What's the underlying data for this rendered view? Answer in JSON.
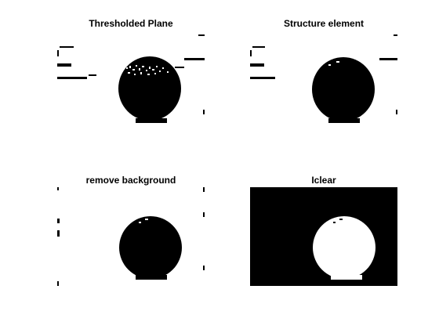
{
  "figure": {
    "background_color": "#ffffff",
    "panels": [
      {
        "title": "Thresholded Plane",
        "background": "#ffffff",
        "foreground": "#000000"
      },
      {
        "title": "Structure element",
        "background": "#ffffff",
        "foreground": "#000000"
      },
      {
        "title": "remove background",
        "background": "#ffffff",
        "foreground": "#000000"
      },
      {
        "title": "Iclear",
        "background": "#000000",
        "foreground": "#ffffff"
      }
    ]
  }
}
